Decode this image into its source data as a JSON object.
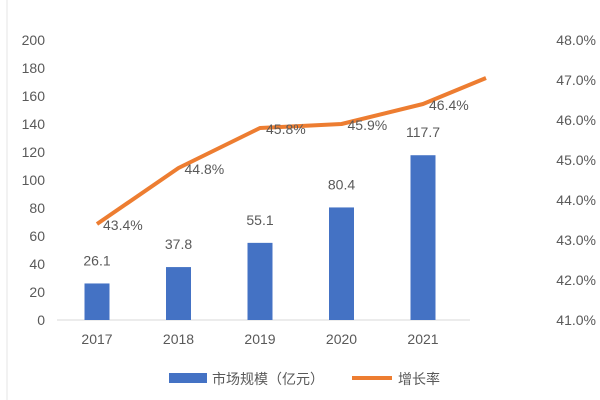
{
  "chart_data": {
    "type": "bar+line",
    "categories": [
      "2017",
      "2018",
      "2019",
      "2020",
      "2021"
    ],
    "series": [
      {
        "name": "市场规模（亿元）",
        "type": "bar",
        "axis": "left",
        "color": "#4472C4",
        "values": [
          26.1,
          37.8,
          55.1,
          80.4,
          117.7
        ],
        "labels": [
          "26.1",
          "37.8",
          "55.1",
          "80.4",
          "117.7"
        ]
      },
      {
        "name": "增长率",
        "type": "line",
        "axis": "right",
        "color": "#ED7D31",
        "values": [
          43.4,
          44.8,
          45.8,
          45.9,
          46.4
        ],
        "labels": [
          "43.4%",
          "44.8%",
          "45.8%",
          "45.9%",
          "46.4%"
        ]
      }
    ],
    "left_axis": {
      "ylim": [
        0,
        200
      ],
      "ticks": [
        "0",
        "20",
        "40",
        "60",
        "80",
        "100",
        "120",
        "140",
        "160",
        "180",
        "200"
      ]
    },
    "right_axis": {
      "ylim": [
        41.0,
        48.0
      ],
      "ticks": [
        "41.0%",
        "42.0%",
        "43.0%",
        "44.0%",
        "45.0%",
        "46.0%",
        "47.0%",
        "48.0%"
      ]
    },
    "grid": false,
    "legend": "bottom"
  }
}
